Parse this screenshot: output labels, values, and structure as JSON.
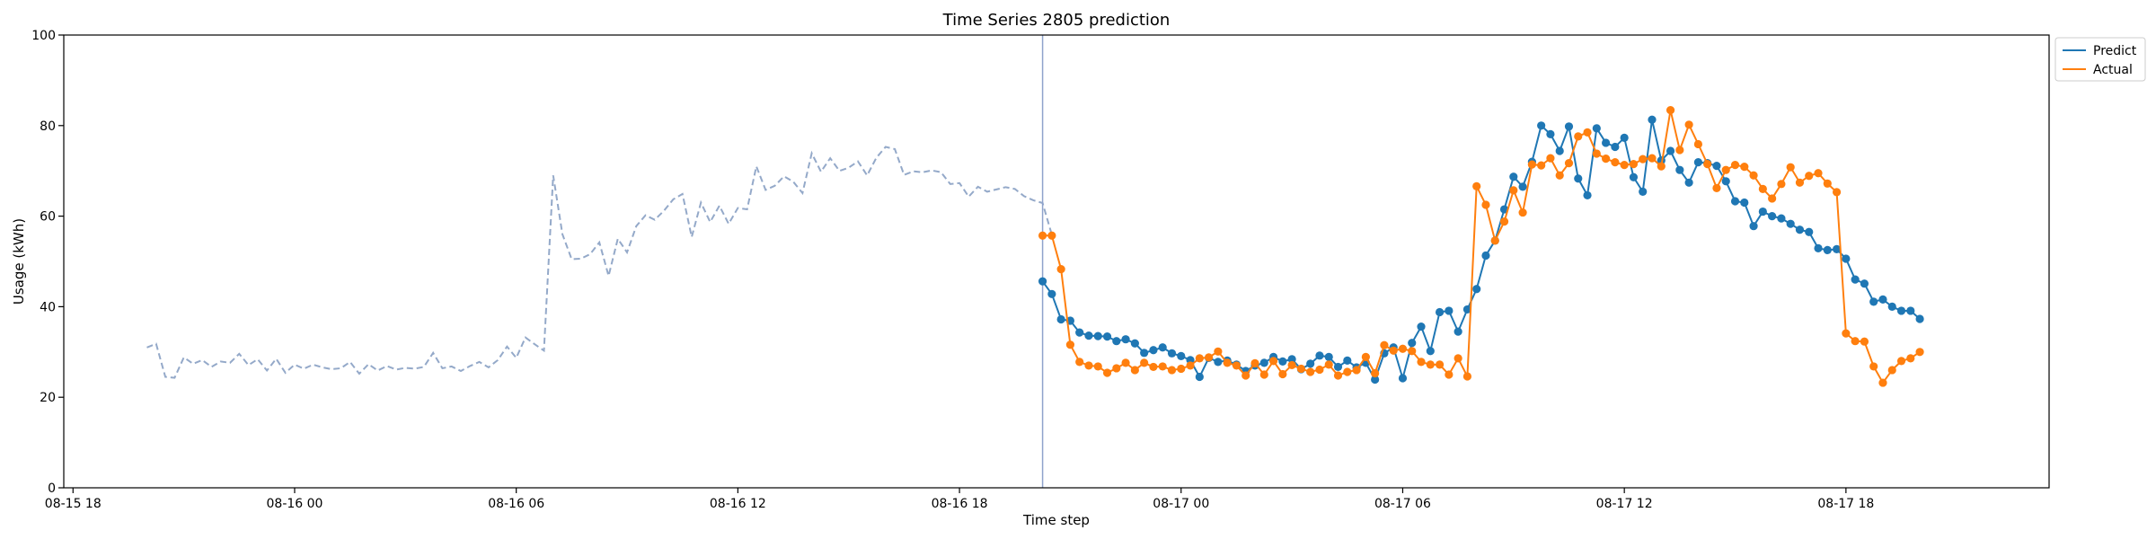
{
  "chart_data": {
    "type": "line",
    "title": "Time Series 2805 prediction",
    "xlabel": "Time step",
    "ylabel": "Usage (kWh)",
    "ylim": [
      0,
      100
    ],
    "yticks": [
      0,
      20,
      40,
      60,
      80,
      100
    ],
    "xlim": [
      "2024-08-15T17:45",
      "2024-08-17T23:30"
    ],
    "xticks": [
      {
        "t": "2024-08-15T18:00",
        "label": "08-15 18"
      },
      {
        "t": "2024-08-16T00:00",
        "label": "08-16 00"
      },
      {
        "t": "2024-08-16T06:00",
        "label": "08-16 06"
      },
      {
        "t": "2024-08-16T12:00",
        "label": "08-16 12"
      },
      {
        "t": "2024-08-16T18:00",
        "label": "08-16 18"
      },
      {
        "t": "2024-08-17T00:00",
        "label": "08-17 00"
      },
      {
        "t": "2024-08-17T06:00",
        "label": "08-17 06"
      },
      {
        "t": "2024-08-17T12:00",
        "label": "08-17 12"
      },
      {
        "t": "2024-08-17T18:00",
        "label": "08-17 18"
      }
    ],
    "interval_minutes": 15,
    "cutoff": "2024-08-16T20:15",
    "legend_position": "top-right",
    "grid": false,
    "history": {
      "start": "2024-08-15T20:00",
      "color": "#94a9c9",
      "style": "dashed",
      "values": [
        31.0,
        31.8,
        24.5,
        24.3,
        28.8,
        27.4,
        28.2,
        26.7,
        27.9,
        27.6,
        29.6,
        27.1,
        28.4,
        25.9,
        28.5,
        25.4,
        27.2,
        26.3,
        27.2,
        26.6,
        26.2,
        26.4,
        27.8,
        25.2,
        27.3,
        25.9,
        26.9,
        26.1,
        26.5,
        26.3,
        26.7,
        29.8,
        26.4,
        26.8,
        25.8,
        26.9,
        27.8,
        26.6,
        28.2,
        31.2,
        28.7,
        33.2,
        31.7,
        30.3,
        69.0,
        56.0,
        50.5,
        50.6,
        51.6,
        54.2,
        46.8,
        55.0,
        52.0,
        57.8,
        60.2,
        59.2,
        61.2,
        63.7,
        64.9,
        55.4,
        63.0,
        58.7,
        62.3,
        58.3,
        61.8,
        61.5,
        71.0,
        65.8,
        66.7,
        68.8,
        67.6,
        65.1,
        73.9,
        69.8,
        72.8,
        70.0,
        70.7,
        72.1,
        69.0,
        72.9,
        75.3,
        74.8,
        69.1,
        69.9,
        69.7,
        70.1,
        69.7,
        67.1,
        67.3,
        64.3,
        66.5,
        65.4,
        65.9,
        66.4,
        66.0,
        64.4,
        63.5,
        62.9,
        55.9
      ]
    },
    "series": [
      {
        "name": "Predict",
        "color": "#1f77b4",
        "start": "2024-08-16T20:15",
        "values": [
          45.6,
          42.8,
          37.2,
          36.9,
          34.3,
          33.6,
          33.5,
          33.4,
          32.4,
          32.8,
          31.9,
          29.8,
          30.4,
          31.0,
          29.7,
          29.1,
          28.2,
          24.5,
          28.7,
          27.8,
          28.1,
          27.2,
          25.8,
          27.0,
          27.6,
          28.9,
          27.9,
          28.4,
          26.2,
          27.4,
          29.2,
          28.9,
          26.7,
          28.1,
          26.6,
          27.6,
          23.9,
          29.7,
          31.0,
          24.2,
          32.0,
          35.6,
          30.2,
          38.8,
          39.1,
          34.5,
          39.4,
          43.9,
          51.3,
          54.6,
          61.5,
          68.7,
          66.5,
          72.0,
          80.0,
          78.1,
          74.4,
          79.8,
          68.3,
          64.6,
          79.4,
          76.2,
          75.3,
          77.3,
          68.6,
          65.4,
          81.3,
          72.3,
          74.4,
          70.2,
          67.4,
          71.9,
          71.7,
          71.1,
          67.7,
          63.3,
          63.0,
          57.8,
          61.0,
          60.0,
          59.5,
          58.3,
          57.0,
          56.5,
          52.9,
          52.5,
          52.7,
          50.6,
          46.0,
          45.1,
          41.1,
          41.6,
          40.0,
          39.1,
          39.1,
          37.3
        ]
      },
      {
        "name": "Actual",
        "color": "#ff7f0e",
        "start": "2024-08-16T20:15",
        "values": [
          55.7,
          55.7,
          48.3,
          31.6,
          27.8,
          27.0,
          26.8,
          25.4,
          26.4,
          27.6,
          26.0,
          27.6,
          26.7,
          26.8,
          26.0,
          26.3,
          27.0,
          28.6,
          28.8,
          30.1,
          27.6,
          27.0,
          24.8,
          27.5,
          25.0,
          28.0,
          25.1,
          27.1,
          26.3,
          25.6,
          26.1,
          27.2,
          24.8,
          25.6,
          26.0,
          28.9,
          25.3,
          31.5,
          30.3,
          30.7,
          30.2,
          27.8,
          27.2,
          27.2,
          25.0,
          28.6,
          24.6,
          66.6,
          62.5,
          54.6,
          58.8,
          65.7,
          60.8,
          71.4,
          71.2,
          72.8,
          69.0,
          71.7,
          77.6,
          78.5,
          73.8,
          72.7,
          71.9,
          71.3,
          71.5,
          72.6,
          72.8,
          71.0,
          83.4,
          74.6,
          80.2,
          75.9,
          71.5,
          66.2,
          70.2,
          71.3,
          70.9,
          69.0,
          66.0,
          63.9,
          67.1,
          70.8,
          67.4,
          68.9,
          69.5,
          67.2,
          65.3,
          34.1,
          32.4,
          32.3,
          26.8,
          23.2,
          26.0,
          28.0,
          28.6,
          30.0
        ]
      }
    ]
  }
}
